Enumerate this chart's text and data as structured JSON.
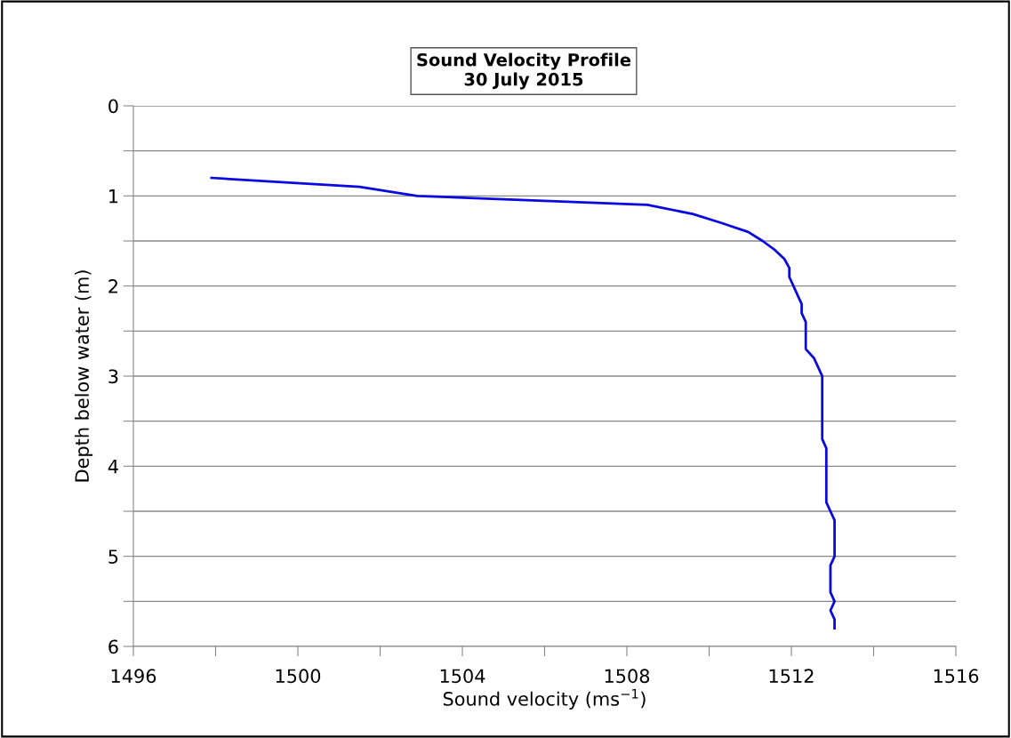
{
  "chart_data": {
    "type": "line",
    "title": "Sound Velocity Profile\n30 July 2015",
    "xlabel": "Sound velocity (ms$^{−1}$)",
    "ylabel": "Depth below water (m)",
    "x": [
      1497.9,
      1501.5,
      1502.9,
      1508.5,
      1509.6,
      1510.3,
      1510.95,
      1511.3,
      1511.6,
      1511.83,
      1511.95,
      1511.95,
      1512.05,
      1512.15,
      1512.25,
      1512.25,
      1512.35,
      1512.35,
      1512.35,
      1512.35,
      1512.55,
      1512.65,
      1512.75,
      1512.75,
      1512.75,
      1512.75,
      1512.75,
      1512.75,
      1512.75,
      1512.75,
      1512.85,
      1512.85,
      1512.85,
      1512.85,
      1512.85,
      1512.85,
      1512.85,
      1512.95,
      1513.05,
      1513.05,
      1513.05,
      1513.05,
      1513.05,
      1512.95,
      1512.95,
      1512.95,
      1512.95,
      1513.05,
      1512.95,
      1513.05,
      1513.05
    ],
    "series": [
      {
        "color": "#0a0ae0",
        "values": [
          0.8,
          0.9,
          1.0,
          1.1,
          1.2,
          1.3,
          1.4,
          1.5,
          1.6,
          1.7,
          1.8,
          1.9,
          2.0,
          2.1,
          2.2,
          2.3,
          2.4,
          2.5,
          2.6,
          2.7,
          2.8,
          2.9,
          3.0,
          3.1,
          3.2,
          3.3,
          3.4,
          3.5,
          3.6,
          3.7,
          3.8,
          3.9,
          4.0,
          4.1,
          4.2,
          4.3,
          4.4,
          4.5,
          4.6,
          4.7,
          4.8,
          4.9,
          5.0,
          5.1,
          5.2,
          5.3,
          5.4,
          5.5,
          5.6,
          5.7,
          5.8
        ]
      }
    ],
    "xlim": [
      1496,
      1516
    ],
    "xticks": [
      1496,
      {
        "value": 1498,
        "label": null
      },
      1500,
      {
        "value": 1502,
        "label": null
      },
      1504,
      {
        "value": 1506,
        "label": null
      },
      1508,
      {
        "value": 1510,
        "label": null
      },
      1512,
      {
        "value": 1514,
        "label": null
      },
      1516
    ],
    "ylim": [
      6,
      0
    ],
    "yticks": [
      0,
      {
        "value": 0.5,
        "label": null
      },
      1,
      {
        "value": 1.5,
        "label": null
      },
      2,
      {
        "value": 2.5,
        "label": null
      },
      3,
      {
        "value": 3.5,
        "label": null
      },
      4,
      {
        "value": 4.5,
        "label": null
      },
      5,
      {
        "value": 5.5,
        "label": null
      },
      6
    ],
    "grid": "y",
    "marker": "none",
    "line_style": "solid"
  }
}
